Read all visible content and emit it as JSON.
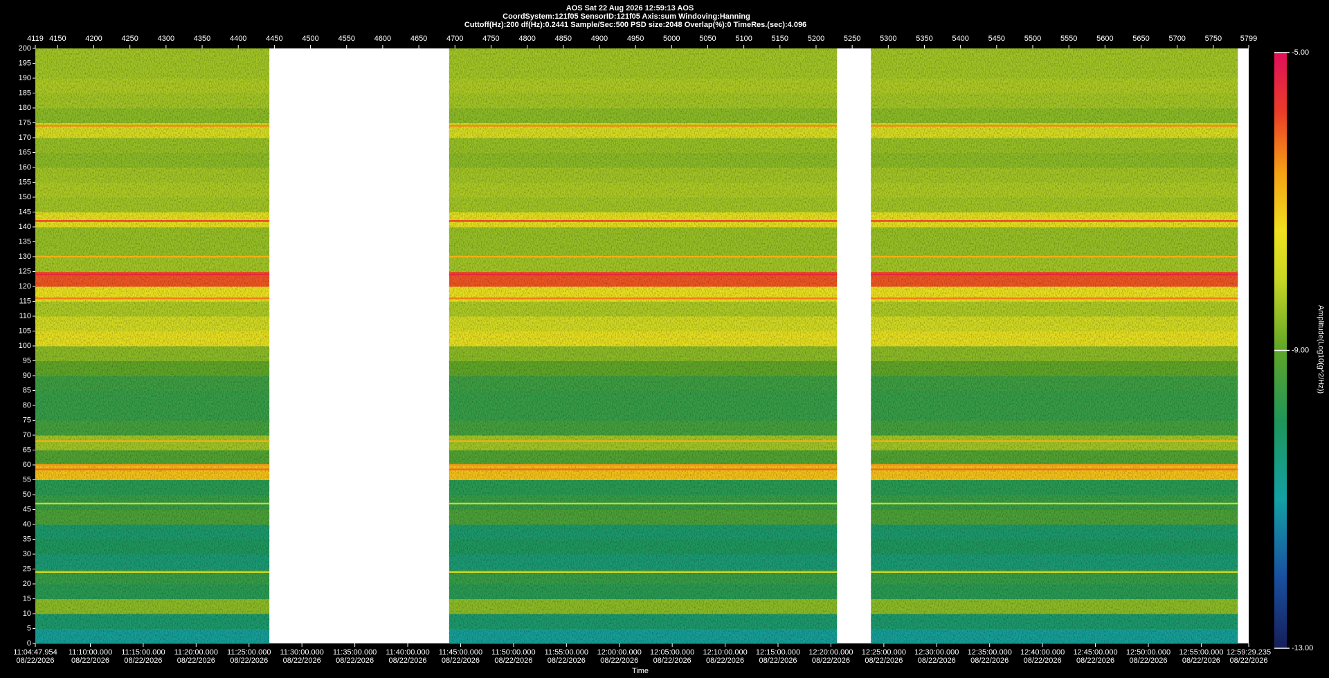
{
  "chart_data": {
    "type": "spectrogram",
    "header": [
      "AOS  Sat 22 Aug 2026 12:59:13  AOS",
      "CoordSystem:121f05   SensorID:121f05   Axis:sum   Windoving:Hanning",
      "Cuttoff(Hz):200     df(Hz):0.2441     Sample/Sec:500     PSD size:2048     Overlap(%):0     TimeRes.(sec):4.096"
    ],
    "x_label": "Time",
    "colorbar_label": "Amplitude(Log10(g^2/Hz))",
    "xlim": [
      4119,
      5799
    ],
    "xticks": [
      4119,
      4150,
      4200,
      4250,
      4300,
      4350,
      4400,
      4450,
      4500,
      4550,
      4600,
      4650,
      4700,
      4750,
      4800,
      4850,
      4900,
      4950,
      5000,
      5050,
      5100,
      5150,
      5200,
      5250,
      5300,
      5350,
      5400,
      5450,
      5500,
      5550,
      5600,
      5650,
      5700,
      5750,
      5799
    ],
    "ylim": [
      0,
      200
    ],
    "yticks": [
      0,
      5,
      10,
      15,
      20,
      25,
      30,
      35,
      40,
      45,
      50,
      55,
      60,
      65,
      70,
      75,
      80,
      85,
      90,
      95,
      100,
      105,
      110,
      115,
      120,
      125,
      130,
      135,
      140,
      145,
      150,
      155,
      160,
      165,
      170,
      175,
      180,
      185,
      190,
      195,
      200
    ],
    "clim": [
      -13,
      -5
    ],
    "cticks": [
      {
        "value": -5,
        "label": "-5.00"
      },
      {
        "value": -9,
        "label": "-9.00"
      },
      {
        "value": -13,
        "label": "-13.00"
      }
    ],
    "time_ticks": [
      {
        "time": "11:04:47.954",
        "date": "08/22/2026"
      },
      {
        "time": "11:10:00.000",
        "date": "08/22/2026"
      },
      {
        "time": "11:15:00.000",
        "date": "08/22/2026"
      },
      {
        "time": "11:20:00.000",
        "date": "08/22/2026"
      },
      {
        "time": "11:25:00.000",
        "date": "08/22/2026"
      },
      {
        "time": "11:30:00.000",
        "date": "08/22/2026"
      },
      {
        "time": "11:35:00.000",
        "date": "08/22/2026"
      },
      {
        "time": "11:40:00.000",
        "date": "08/22/2026"
      },
      {
        "time": "11:45:00.000",
        "date": "08/22/2026"
      },
      {
        "time": "11:50:00.000",
        "date": "08/22/2026"
      },
      {
        "time": "11:55:00.000",
        "date": "08/22/2026"
      },
      {
        "time": "12:00:00.000",
        "date": "08/22/2026"
      },
      {
        "time": "12:05:00.000",
        "date": "08/22/2026"
      },
      {
        "time": "12:10:00.000",
        "date": "08/22/2026"
      },
      {
        "time": "12:15:00.000",
        "date": "08/22/2026"
      },
      {
        "time": "12:20:00.000",
        "date": "08/22/2026"
      },
      {
        "time": "12:25:00.000",
        "date": "08/22/2026"
      },
      {
        "time": "12:30:00.000",
        "date": "08/22/2026"
      },
      {
        "time": "12:35:00.000",
        "date": "08/22/2026"
      },
      {
        "time": "12:40:00.000",
        "date": "08/22/2026"
      },
      {
        "time": "12:45:00.000",
        "date": "08/22/2026"
      },
      {
        "time": "12:50:00.000",
        "date": "08/22/2026"
      },
      {
        "time": "12:55:00.000",
        "date": "08/22/2026"
      },
      {
        "time": "12:59:29.235",
        "date": "08/22/2026"
      }
    ],
    "segments": [
      {
        "start": 4119,
        "end": 4443
      },
      {
        "start": 4692,
        "end": 5229
      },
      {
        "start": 5276,
        "end": 5784
      }
    ],
    "frequency_bins": [
      0,
      5,
      10,
      15,
      20,
      25,
      30,
      35,
      40,
      45,
      50,
      55,
      60,
      65,
      70,
      75,
      80,
      85,
      90,
      95,
      100,
      105,
      110,
      115,
      120,
      125,
      130,
      135,
      140,
      145,
      150,
      155,
      160,
      165,
      170,
      175,
      180,
      185,
      190,
      195,
      200
    ],
    "band_values": [
      -10.8,
      -10.2,
      -8.6,
      -9.8,
      -9.6,
      -10.3,
      -10.0,
      -10.2,
      -9.3,
      -9.6,
      -9.8,
      -7.0,
      -9.2,
      -8.4,
      -9.4,
      -9.6,
      -9.6,
      -9.5,
      -9.0,
      -8.6,
      -7.6,
      -7.9,
      -8.3,
      -7.5,
      -6.0,
      -8.4,
      -8.5,
      -8.5,
      -7.6,
      -8.4,
      -8.3,
      -8.4,
      -8.6,
      -8.5,
      -7.8,
      -8.6,
      -8.4,
      -8.3,
      -8.4,
      -8.4
    ],
    "lines": [
      {
        "freq": 24,
        "amplitude": -8.0
      },
      {
        "freq": 47,
        "amplitude": -8.0
      },
      {
        "freq": 58.5,
        "amplitude": -6.2
      },
      {
        "freq": 60,
        "amplitude": -6.5
      },
      {
        "freq": 68,
        "amplitude": -6.8
      },
      {
        "freq": 116,
        "amplitude": -6.3
      },
      {
        "freq": 124,
        "amplitude": -5.4
      },
      {
        "freq": 130,
        "amplitude": -6.8
      },
      {
        "freq": 142,
        "amplitude": -5.8
      },
      {
        "freq": 174,
        "amplitude": -6.4
      }
    ]
  }
}
